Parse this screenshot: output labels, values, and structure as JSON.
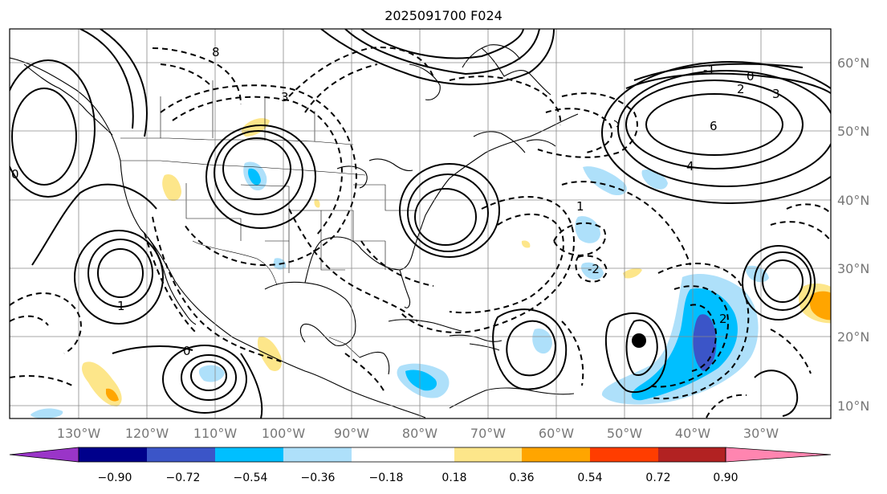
{
  "title": "2025091700 F024",
  "longitude_labels": [
    "130°W",
    "120°W",
    "110°W",
    "100°W",
    "90°W",
    "80°W",
    "70°W",
    "60°W",
    "50°W",
    "40°W",
    "30°W"
  ],
  "latitude_labels": [
    "60°N",
    "50°N",
    "40°N",
    "30°N",
    "20°N",
    "10°N"
  ],
  "contour_labels": [
    "0",
    "2",
    "6",
    "4",
    "3",
    "8",
    "1",
    "3",
    "0",
    "1",
    "0",
    "2",
    "-1",
    "-2"
  ],
  "colorbar": {
    "tick_labels": [
      "−0.90",
      "−0.72",
      "−0.54",
      "−0.36",
      "−0.18",
      "0.18",
      "0.36",
      "0.54",
      "0.72",
      "0.90"
    ],
    "colors": [
      "#9a35c8",
      "#00008b",
      "#3b55c8",
      "#00bfff",
      "#aee0fa",
      "#ffffff",
      "#fde68a",
      "#ffa500",
      "#ff3d00",
      "#b22222",
      "#ff85b0"
    ]
  },
  "storm_marker": {
    "lat": 19.3,
    "lon": -51.0
  }
}
